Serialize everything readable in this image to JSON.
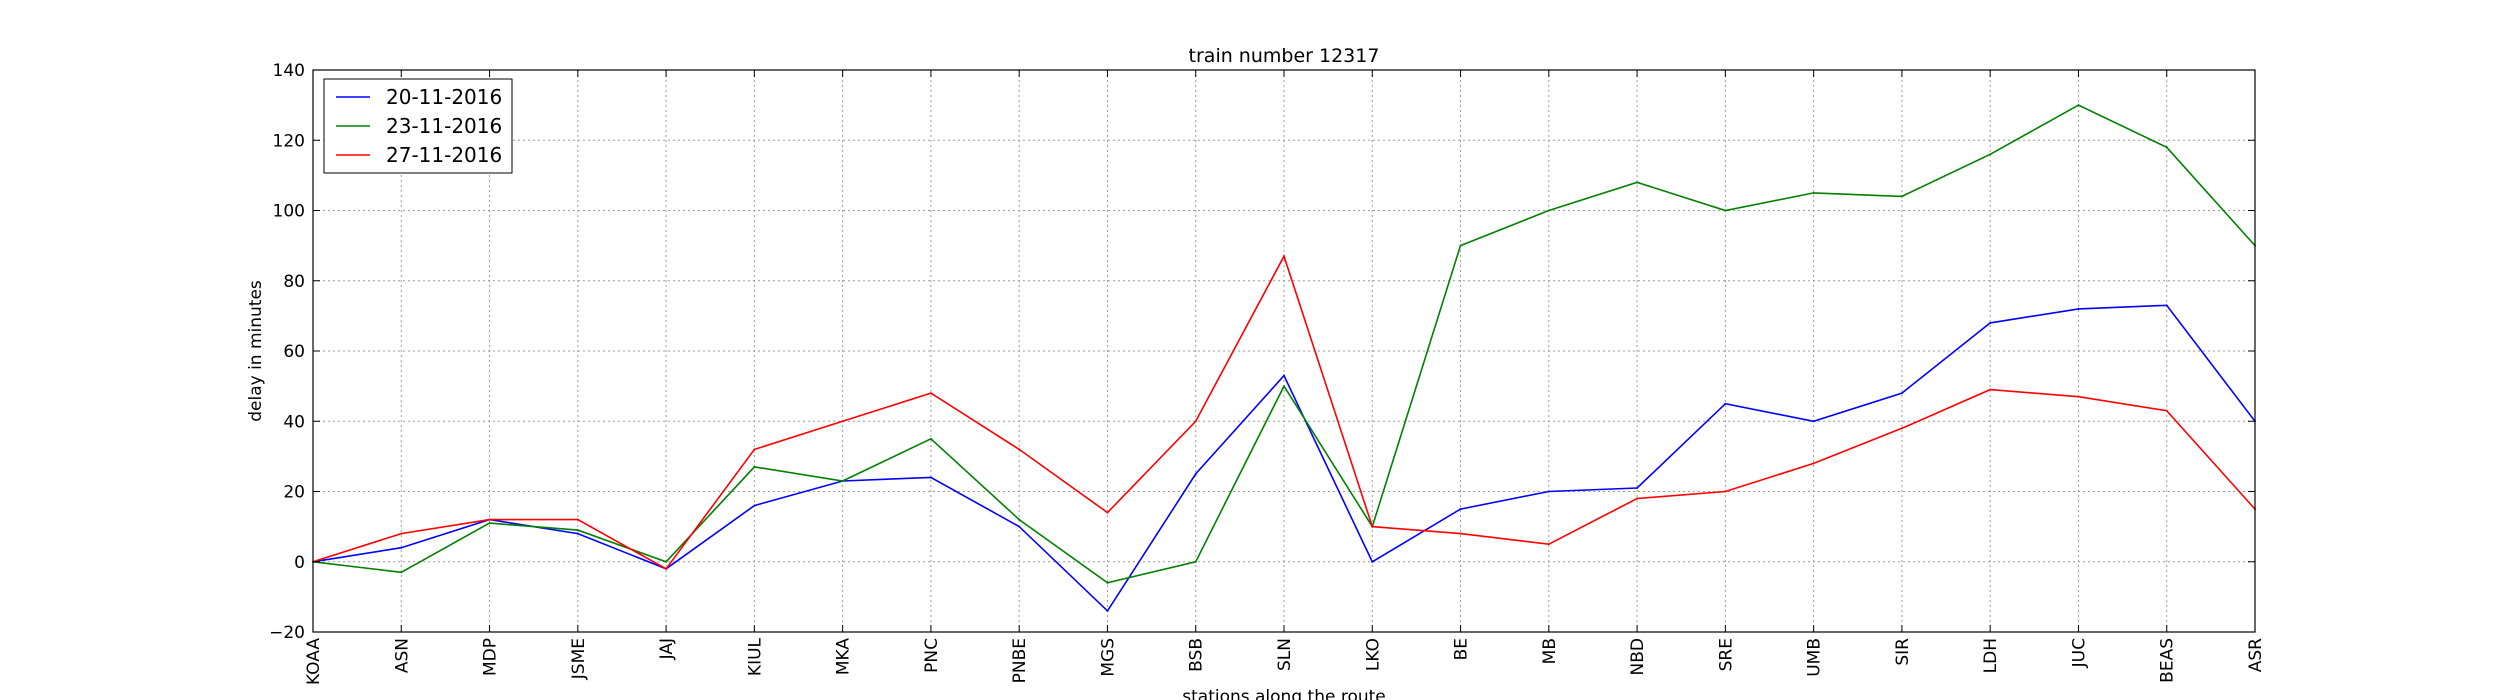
{
  "chart_data": {
    "type": "line",
    "title": "train number 12317",
    "xlabel": "stations along the route",
    "ylabel": "delay in minutes",
    "ylim": [
      -20,
      140
    ],
    "yticks": [
      -20,
      0,
      20,
      40,
      60,
      80,
      100,
      120,
      140
    ],
    "ytick_labels": [
      "−20",
      "0",
      "20",
      "40",
      "60",
      "80",
      "100",
      "120",
      "140"
    ],
    "grid": true,
    "legend_position": "top-left",
    "categories": [
      "KOAA",
      "ASN",
      "MDP",
      "JSME",
      "JAJ",
      "KIUL",
      "MKA",
      "PNC",
      "PNBE",
      "MGS",
      "BSB",
      "SLN",
      "LKO",
      "BE",
      "MB",
      "NBD",
      "SRE",
      "UMB",
      "SIR",
      "LDH",
      "JUC",
      "BEAS",
      "ASR"
    ],
    "series": [
      {
        "name": "20-11-2016",
        "color": "#0000ff",
        "values": [
          0,
          4,
          12,
          8,
          -2,
          16,
          23,
          24,
          10,
          -14,
          25,
          53,
          0,
          15,
          20,
          21,
          45,
          40,
          48,
          68,
          72,
          73,
          40
        ]
      },
      {
        "name": "23-11-2016",
        "color": "#008000",
        "values": [
          0,
          -3,
          11,
          9,
          0,
          27,
          23,
          35,
          12,
          -6,
          0,
          50,
          10,
          90,
          100,
          108,
          100,
          105,
          104,
          116,
          130,
          118,
          90
        ]
      },
      {
        "name": "27-11-2016",
        "color": "#ff0000",
        "values": [
          0,
          8,
          12,
          12,
          -2,
          32,
          40,
          48,
          32,
          14,
          40,
          87,
          10,
          8,
          5,
          18,
          20,
          28,
          38,
          49,
          47,
          43,
          15
        ]
      }
    ]
  }
}
